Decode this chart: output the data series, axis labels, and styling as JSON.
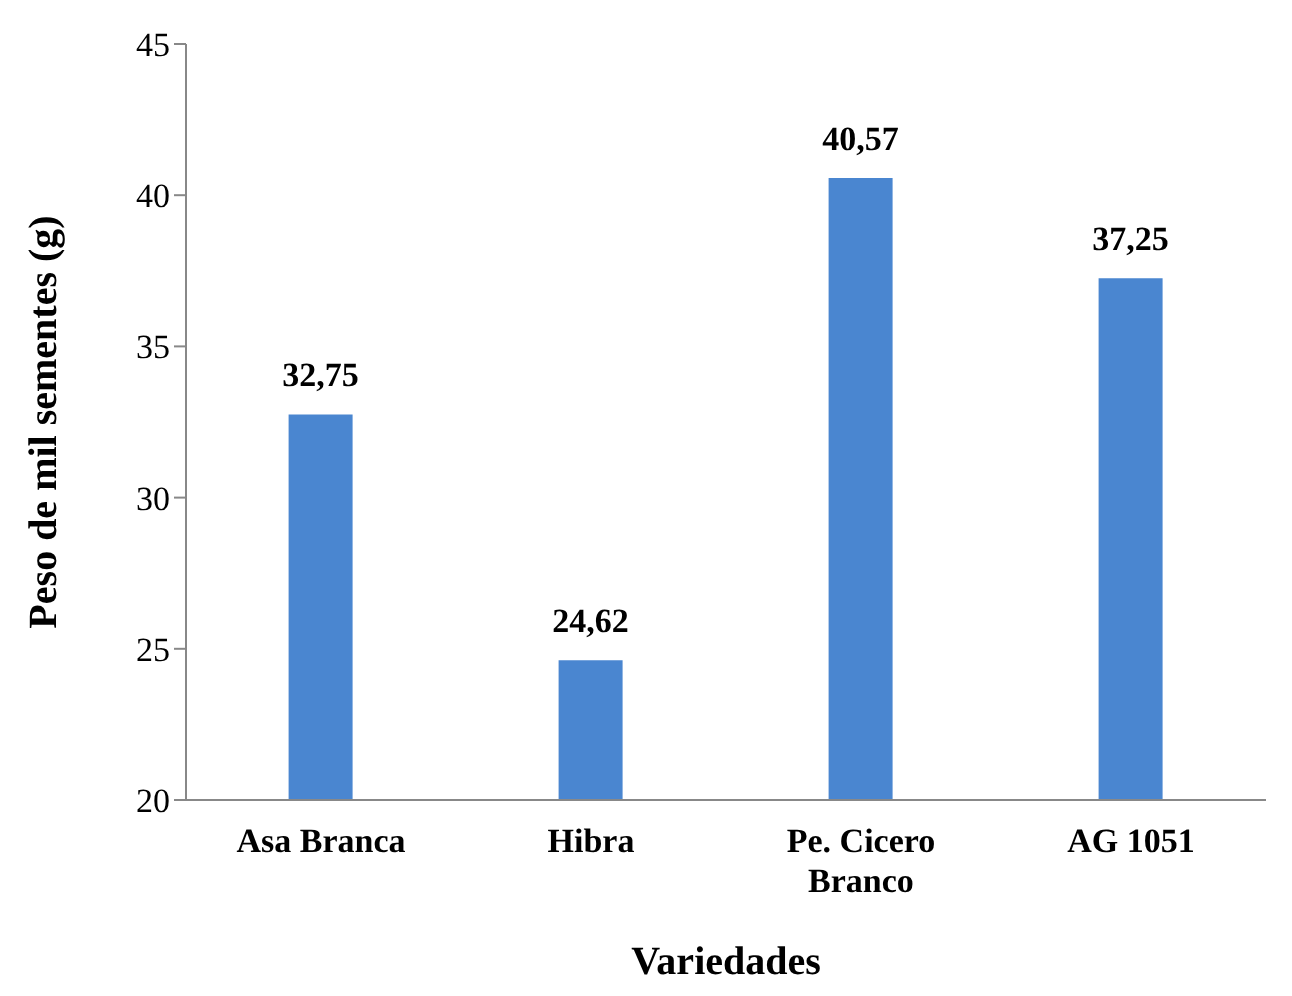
{
  "chart_data": {
    "type": "bar",
    "xlabel": "Variedades",
    "ylabel": "Peso de mil sementes (g)",
    "categories": [
      "Asa Branca",
      "Hibra",
      "Pe. Cicero Branco",
      "AG 1051"
    ],
    "values": [
      32.75,
      24.62,
      40.57,
      37.25
    ],
    "color": "#4a86d0",
    "value_labels": [
      "32,75",
      "24,62",
      "40,57",
      "37,25"
    ],
    "ylim": [
      20,
      45
    ],
    "yticks": [
      20,
      25,
      30,
      35,
      40,
      45
    ],
    "grid": false,
    "legend": false
  }
}
